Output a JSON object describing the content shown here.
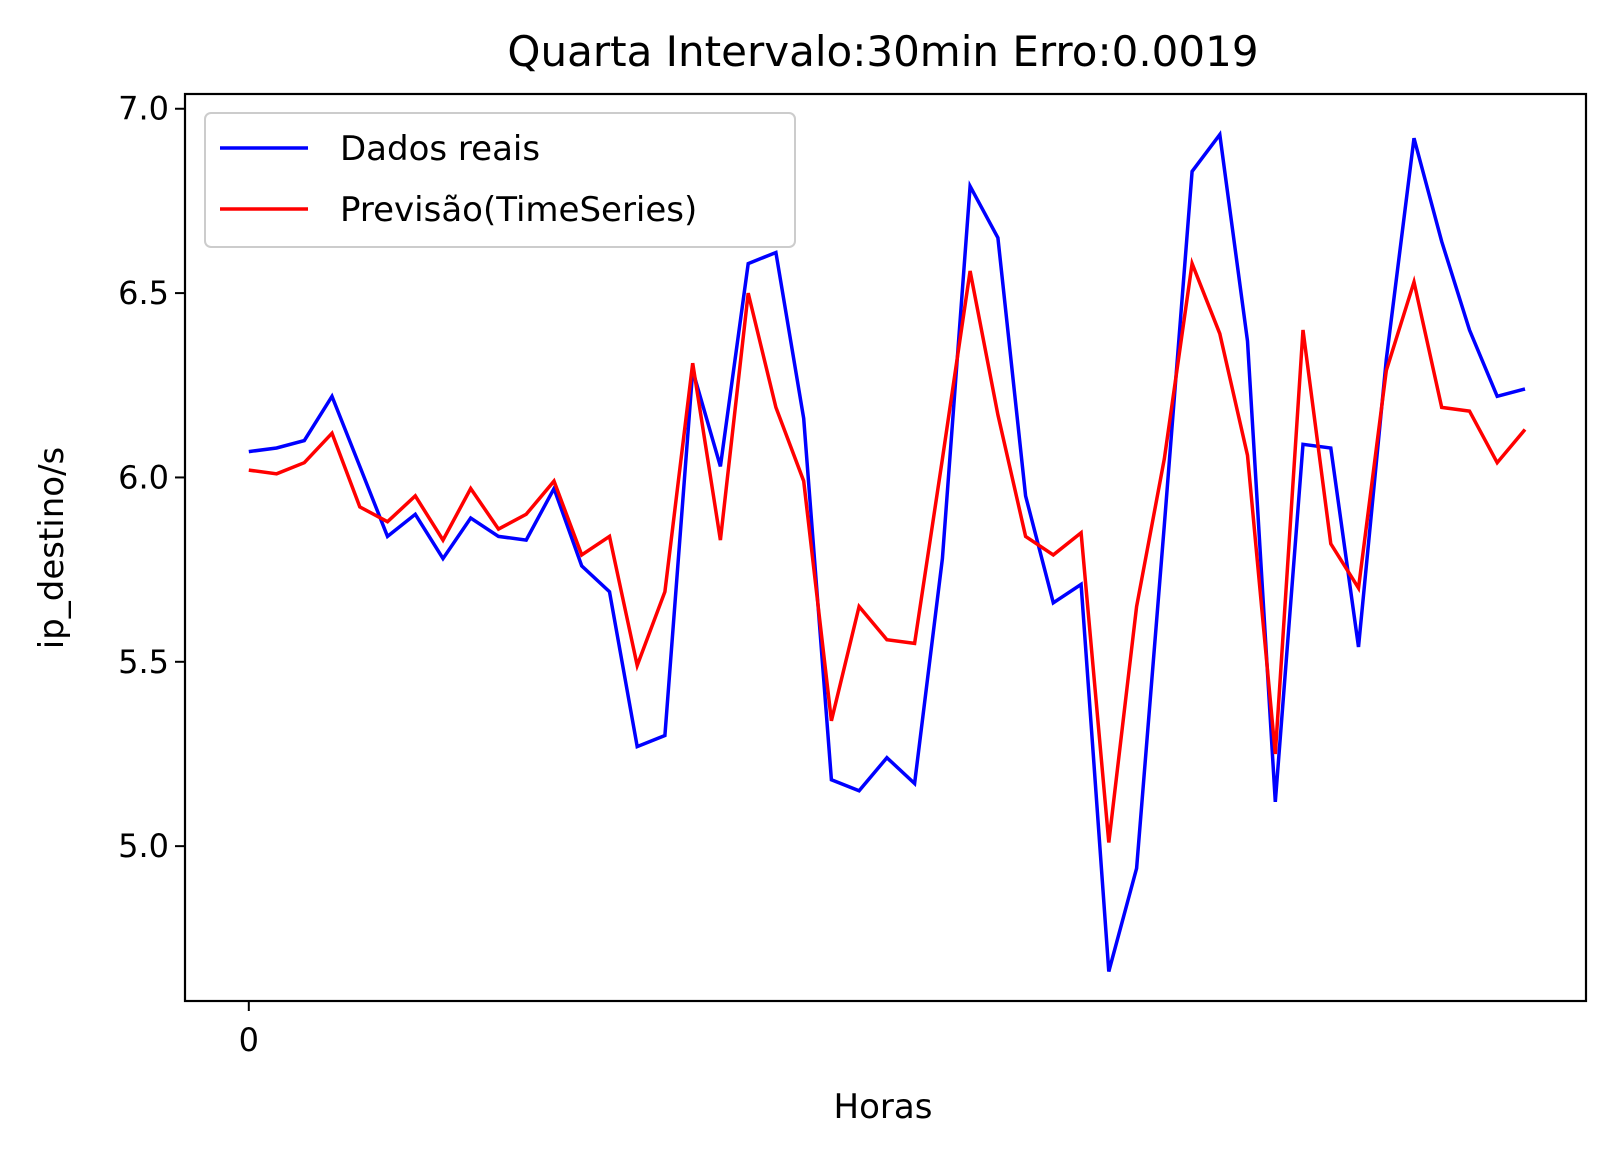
{
  "chart_data": {
    "type": "line",
    "title": "Quarta Intervalo:30min Erro:0.0019",
    "xlabel": "Horas",
    "ylabel": "ip_destino/s",
    "ylim": [
      4.58,
      7.04
    ],
    "xlim": [
      -2.3,
      48.2
    ],
    "x_ticks": [
      0
    ],
    "x_tick_labels": [
      "0"
    ],
    "y_ticks": [
      5.0,
      5.5,
      6.0,
      6.5,
      7.0
    ],
    "y_tick_labels": [
      "5.0",
      "5.5",
      "6.0",
      "6.5",
      "7.0"
    ],
    "grid": false,
    "legend_position": "top-left",
    "x": [
      0,
      1,
      2,
      3,
      4,
      5,
      6,
      7,
      8,
      9,
      10,
      11,
      12,
      13,
      14,
      15,
      16,
      17,
      18,
      19,
      20,
      21,
      22,
      23,
      24,
      25,
      26,
      27,
      28,
      29,
      30,
      31,
      32,
      33,
      34,
      35,
      36,
      37,
      38,
      39,
      40,
      41,
      42,
      43,
      44,
      45,
      46
    ],
    "series": [
      {
        "name": "Dados reais",
        "color": "#0000ff",
        "values": [
          6.07,
          6.08,
          6.1,
          6.22,
          6.03,
          5.84,
          5.9,
          5.78,
          5.89,
          5.84,
          5.83,
          5.97,
          5.76,
          5.69,
          5.27,
          5.3,
          6.29,
          6.03,
          6.58,
          6.61,
          6.16,
          5.18,
          5.15,
          5.24,
          5.17,
          5.78,
          6.79,
          6.65,
          5.95,
          5.66,
          5.71,
          4.66,
          4.94,
          5.87,
          6.83,
          6.93,
          6.37,
          5.12,
          6.09,
          6.08,
          5.54,
          6.32,
          6.92,
          6.64,
          6.4,
          6.22,
          6.24
        ]
      },
      {
        "name": "Previsão(TimeSeries)",
        "color": "#ff0000",
        "values": [
          6.02,
          6.01,
          6.04,
          6.12,
          5.92,
          5.88,
          5.95,
          5.83,
          5.97,
          5.86,
          5.9,
          5.99,
          5.79,
          5.84,
          5.49,
          5.69,
          6.31,
          5.83,
          6.5,
          6.19,
          5.99,
          5.34,
          5.65,
          5.56,
          5.55,
          6.05,
          6.56,
          6.17,
          5.84,
          5.79,
          5.85,
          5.01,
          5.65,
          6.05,
          6.58,
          6.39,
          6.06,
          5.25,
          6.4,
          5.82,
          5.7,
          6.29,
          6.53,
          6.19,
          6.18,
          6.04,
          6.13
        ]
      }
    ]
  }
}
